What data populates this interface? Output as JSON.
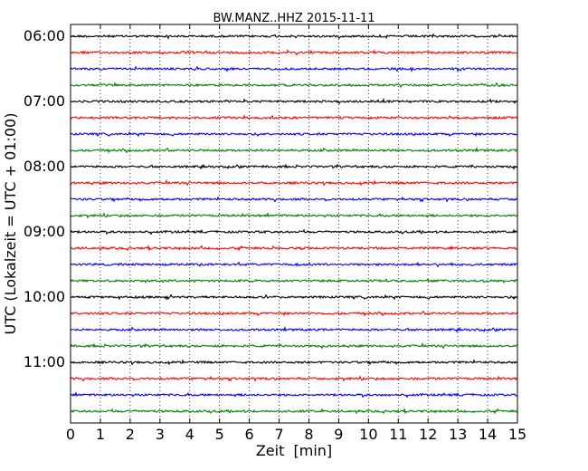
{
  "chart_data": {
    "type": "line",
    "title": "BW.MANZ..HHZ 2015-11-11",
    "xlabel": "Zeit  [min]",
    "ylabel": "UTC (Lokalzeit = UTC + 01:00)",
    "xlim": [
      0,
      15
    ],
    "x_ticks": [
      "0",
      "1",
      "2",
      "3",
      "4",
      "5",
      "6",
      "7",
      "8",
      "9",
      "10",
      "11",
      "12",
      "13",
      "14",
      "15"
    ],
    "y_ticks": [
      "06:00",
      "07:00",
      "08:00",
      "09:00",
      "10:00",
      "11:00"
    ],
    "grid": "vertical dotted",
    "trace_colors": [
      "#000000",
      "#ff0000",
      "#0000ff",
      "#008000"
    ],
    "series": [
      {
        "start": "06:00",
        "color": "#000000"
      },
      {
        "start": "06:15",
        "color": "#ff0000"
      },
      {
        "start": "06:30",
        "color": "#0000ff"
      },
      {
        "start": "06:45",
        "color": "#008000"
      },
      {
        "start": "07:00",
        "color": "#000000"
      },
      {
        "start": "07:15",
        "color": "#ff0000"
      },
      {
        "start": "07:30",
        "color": "#0000ff"
      },
      {
        "start": "07:45",
        "color": "#008000"
      },
      {
        "start": "08:00",
        "color": "#000000"
      },
      {
        "start": "08:15",
        "color": "#ff0000"
      },
      {
        "start": "08:30",
        "color": "#0000ff"
      },
      {
        "start": "08:45",
        "color": "#008000"
      },
      {
        "start": "09:00",
        "color": "#000000"
      },
      {
        "start": "09:15",
        "color": "#ff0000"
      },
      {
        "start": "09:30",
        "color": "#0000ff"
      },
      {
        "start": "09:45",
        "color": "#008000"
      },
      {
        "start": "10:00",
        "color": "#000000"
      },
      {
        "start": "10:15",
        "color": "#ff0000"
      },
      {
        "start": "10:30",
        "color": "#0000ff"
      },
      {
        "start": "10:45",
        "color": "#008000"
      },
      {
        "start": "11:00",
        "color": "#000000"
      },
      {
        "start": "11:15",
        "color": "#ff0000"
      },
      {
        "start": "11:30",
        "color": "#0000ff"
      },
      {
        "start": "11:45",
        "color": "#008000"
      }
    ]
  }
}
